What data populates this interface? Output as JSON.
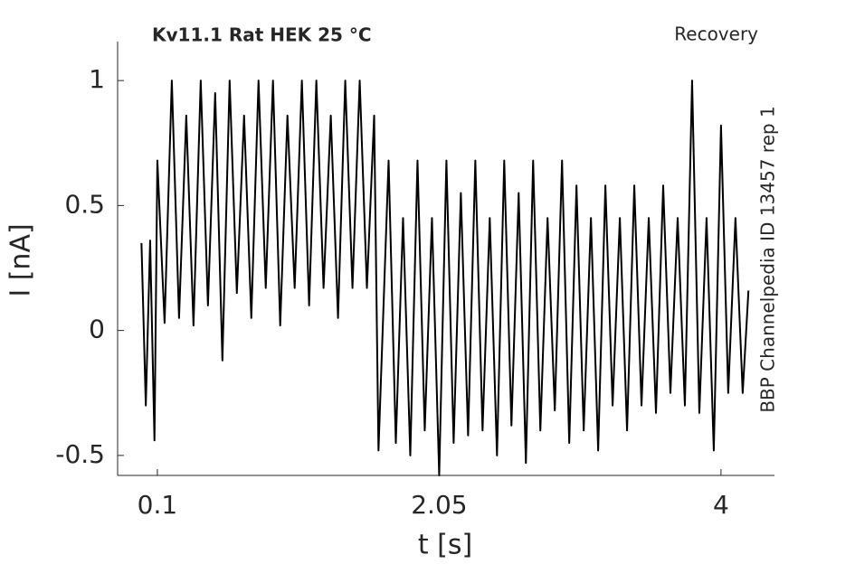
{
  "chart_data": {
    "type": "line",
    "title": "Kv11.1  Rat  HEK  25 °C",
    "subtitle": "Recovery",
    "annotation": "BBP Channelpedia ID 13457 rep 1",
    "xlabel": "t [s]",
    "ylabel": "I [nA]",
    "xlim": [
      -0.175,
      4.37
    ],
    "ylim": [
      -0.58,
      1.156
    ],
    "xticks": [
      0.1,
      2.05,
      4
    ],
    "yticks": [
      -0.5,
      0,
      0.5,
      1
    ],
    "grid": false,
    "series": [
      {
        "color": "#000000",
        "x": [
          -0.01,
          0.02,
          0.05,
          0.08,
          0.1,
          0.15,
          0.2,
          0.25,
          0.3,
          0.35,
          0.4,
          0.45,
          0.5,
          0.55,
          0.6,
          0.65,
          0.7,
          0.75,
          0.8,
          0.85,
          0.9,
          0.95,
          1.0,
          1.05,
          1.1,
          1.15,
          1.2,
          1.25,
          1.3,
          1.35,
          1.4,
          1.45,
          1.5,
          1.55,
          1.6,
          1.63,
          1.7,
          1.75,
          1.8,
          1.85,
          1.9,
          1.95,
          2.0,
          2.05,
          2.1,
          2.15,
          2.2,
          2.25,
          2.3,
          2.35,
          2.4,
          2.45,
          2.5,
          2.55,
          2.6,
          2.65,
          2.7,
          2.75,
          2.8,
          2.85,
          2.9,
          2.95,
          3.0,
          3.05,
          3.1,
          3.15,
          3.2,
          3.25,
          3.3,
          3.35,
          3.4,
          3.45,
          3.5,
          3.55,
          3.6,
          3.65,
          3.7,
          3.75,
          3.8,
          3.85,
          3.9,
          3.95,
          4.0,
          4.05,
          4.1,
          4.15,
          4.19
        ],
        "values": [
          0.35,
          -0.3,
          0.36,
          -0.44,
          0.68,
          0.03,
          1.0,
          0.05,
          0.86,
          0.02,
          1.0,
          0.1,
          0.95,
          -0.12,
          1.0,
          0.15,
          0.86,
          0.05,
          1.0,
          0.17,
          1.0,
          0.02,
          0.86,
          0.17,
          1.0,
          0.1,
          1.0,
          0.17,
          0.86,
          0.05,
          1.0,
          0.17,
          1.0,
          0.17,
          0.86,
          -0.48,
          0.68,
          -0.45,
          0.45,
          -0.5,
          0.68,
          -0.4,
          0.45,
          -0.58,
          0.68,
          -0.45,
          0.55,
          -0.42,
          0.68,
          -0.4,
          0.45,
          -0.5,
          0.68,
          -0.38,
          0.55,
          -0.53,
          0.68,
          -0.4,
          0.45,
          -0.32,
          0.68,
          -0.45,
          0.58,
          -0.4,
          0.45,
          -0.48,
          0.58,
          -0.3,
          0.45,
          -0.4,
          0.58,
          -0.3,
          0.45,
          -0.33,
          0.58,
          -0.25,
          0.45,
          -0.3,
          1.0,
          -0.33,
          0.45,
          -0.48,
          0.82,
          -0.25,
          0.45,
          -0.25,
          0.16
        ]
      }
    ]
  }
}
